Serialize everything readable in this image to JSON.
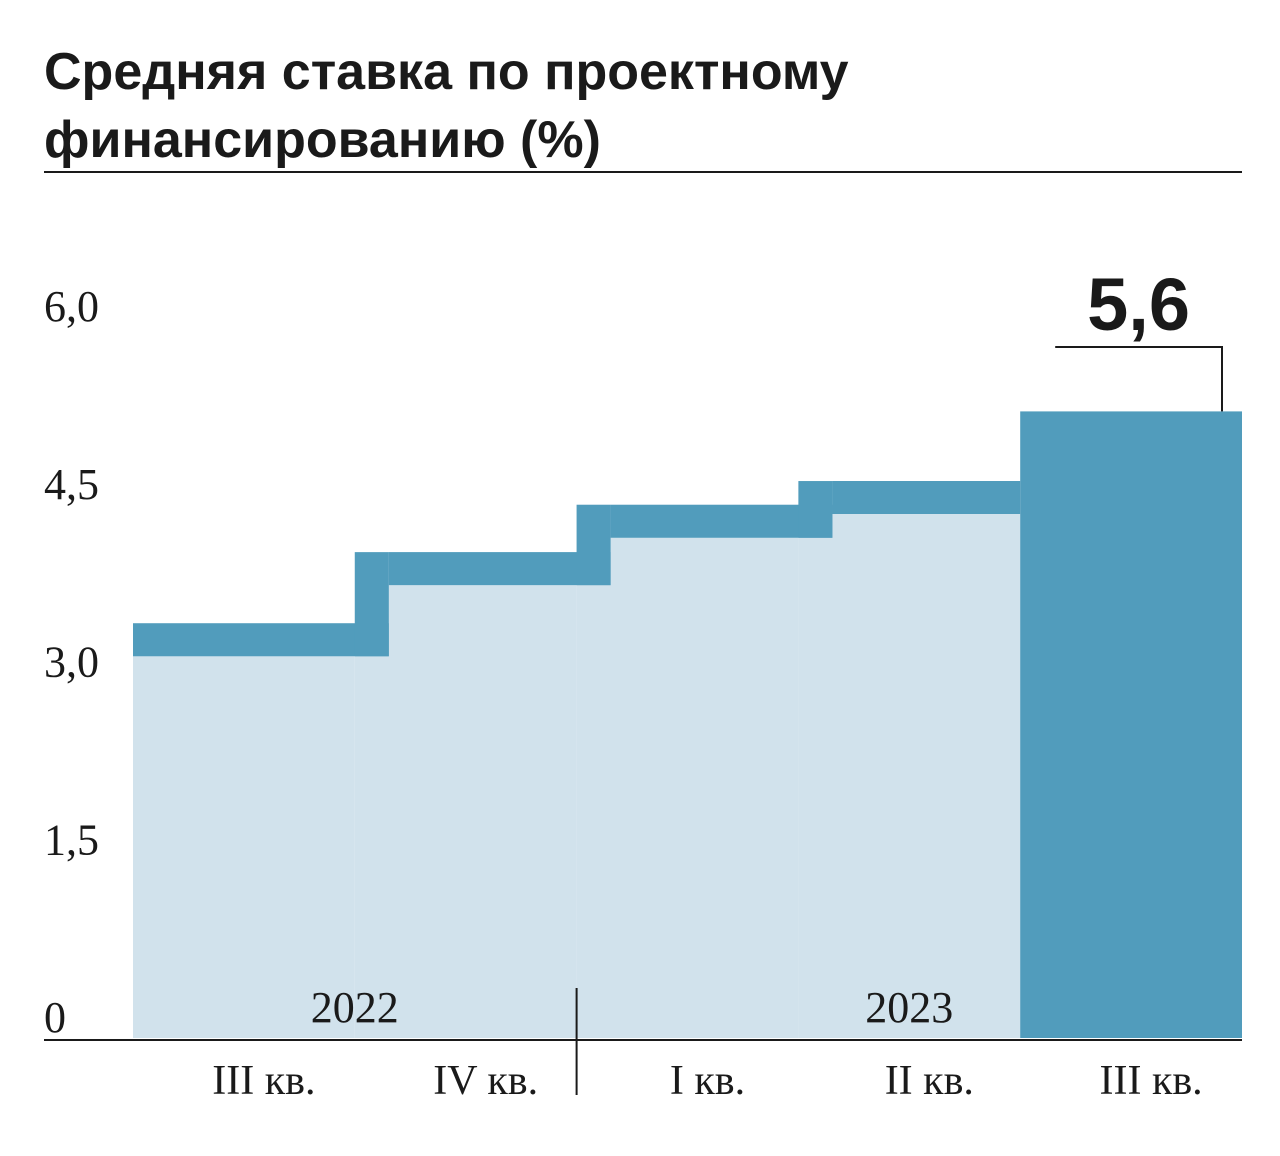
{
  "chart_data": {
    "type": "bar",
    "title": "Средняя ставка по проектному финансированию (%)",
    "categories": [
      "III кв.",
      "IV кв.",
      "I кв.",
      "II кв.",
      "III кв."
    ],
    "years": [
      {
        "label": "2022",
        "first_category": 0,
        "last_category": 1
      },
      {
        "label": "2023",
        "first_category": 2,
        "last_category": 4
      }
    ],
    "series": [
      {
        "values": [
          3.5,
          4.1,
          4.5,
          4.7,
          5.6
        ]
      }
    ],
    "yticks": [
      "0",
      "1,5",
      "3,0",
      "4,5",
      "6,0"
    ],
    "ytick_values": [
      0,
      1.5,
      3.0,
      4.5,
      6.0
    ],
    "ylim": [
      0,
      6.0
    ],
    "highlight": {
      "index": 4,
      "label": "5,6"
    },
    "colors": {
      "fill_light": "#d1e2ec",
      "band": "#519cbc",
      "highlight": "#519cbc",
      "text": "#1a1a1a"
    }
  }
}
